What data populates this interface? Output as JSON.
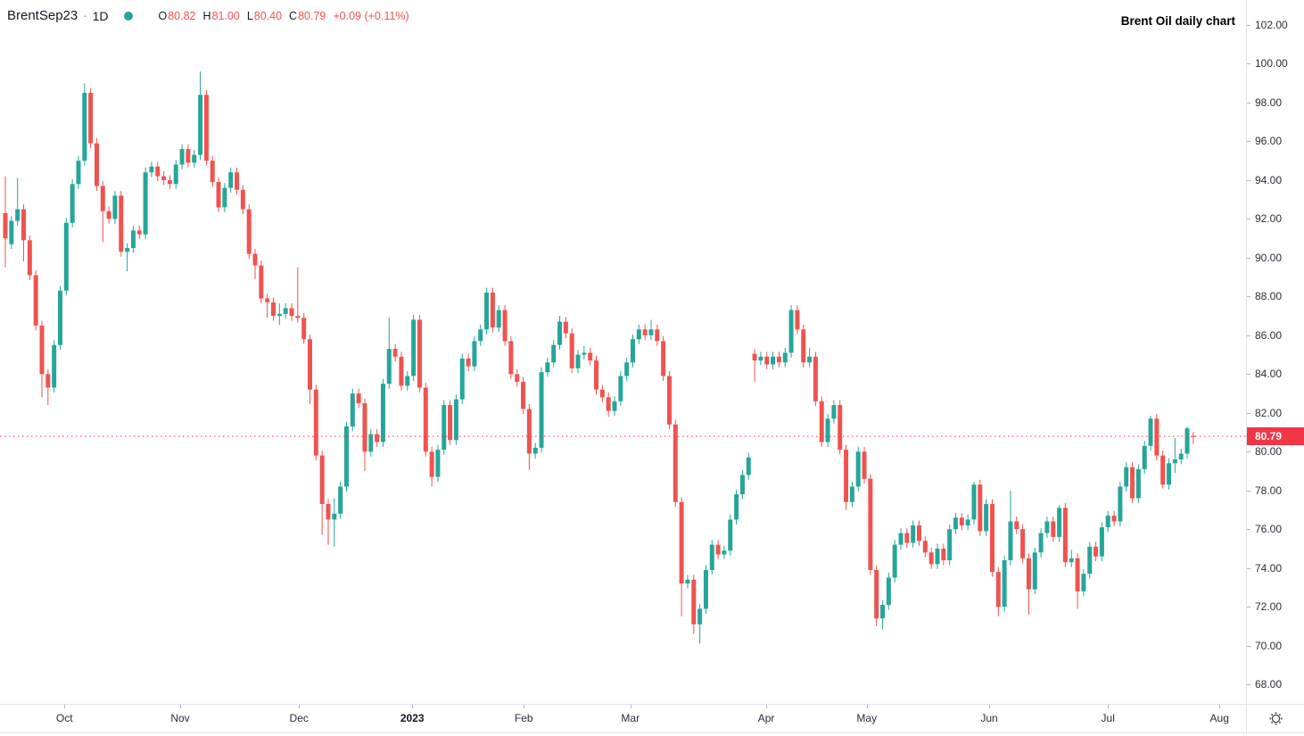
{
  "header": {
    "symbol": "BrentSep23",
    "separator": "·",
    "interval": "1D",
    "ohlc": [
      {
        "label": "O",
        "value": "80.82"
      },
      {
        "label": "H",
        "value": "81.00"
      },
      {
        "label": "L",
        "value": "80.40"
      },
      {
        "label": "C",
        "value": "80.79"
      }
    ],
    "change": "+0.09 (+0.11%)"
  },
  "annotation": {
    "title": "Brent Oil daily chart"
  },
  "price_axis": {
    "last_price_label": "80.79"
  },
  "toolbar": {
    "settings_icon": "gear-icon"
  },
  "colors": {
    "up": "#26a69a",
    "down": "#ef5350",
    "ohlc_values": "#ef5350",
    "last_price_badge": "#f23645",
    "dotted_line": "#f23645",
    "axis_text": "#2a2e39",
    "border": "#e0e3eb"
  },
  "chart_data": {
    "type": "candlestick",
    "title": "Brent Oil daily chart",
    "symbol": "BrentSep23",
    "interval": "1D",
    "legend": "O H L C of last bar: 80.82 / 81.00 / 80.40 / 80.79",
    "grid": false,
    "y_range_visible": [
      67.0,
      103.3
    ],
    "price_ticks": [
      102,
      100,
      98,
      96,
      94,
      92,
      90,
      88,
      86,
      84,
      82,
      80,
      78,
      76,
      74,
      72,
      70,
      68
    ],
    "last_price": 80.79,
    "x_ticks": [
      {
        "label": "Oct",
        "index": 9.7
      },
      {
        "label": "Nov",
        "index": 28.7
      },
      {
        "label": "Dec",
        "index": 48.2
      },
      {
        "label": "2023",
        "index": 66.8,
        "bold": true
      },
      {
        "label": "Feb",
        "index": 85.1
      },
      {
        "label": "Mar",
        "index": 102.6
      },
      {
        "label": "Apr",
        "index": 124.9
      },
      {
        "label": "May",
        "index": 141.4
      },
      {
        "label": "Jun",
        "index": 161.5
      },
      {
        "label": "Jul",
        "index": 181.0
      },
      {
        "label": "Aug",
        "index": 199.3
      }
    ],
    "candles": [
      [
        92.3,
        94.2,
        89.5,
        91.0
      ],
      [
        90.7,
        92.15,
        90.45,
        91.9
      ],
      [
        91.9,
        94.1,
        91.65,
        92.5
      ],
      [
        92.5,
        92.75,
        89.8,
        90.9
      ],
      [
        90.9,
        91.15,
        88.85,
        89.1
      ],
      [
        89.1,
        89.35,
        86.25,
        86.5
      ],
      [
        86.5,
        86.75,
        82.8,
        84.0
      ],
      [
        84.0,
        84.25,
        82.4,
        83.3
      ],
      [
        83.3,
        85.75,
        83.05,
        85.5
      ],
      [
        85.5,
        88.55,
        85.25,
        88.3
      ],
      [
        88.3,
        92.05,
        88.05,
        91.8
      ],
      [
        91.8,
        94.05,
        91.55,
        93.8
      ],
      [
        93.8,
        95.25,
        93.55,
        95.0
      ],
      [
        95.0,
        99.0,
        94.75,
        98.5
      ],
      [
        98.5,
        98.75,
        95.65,
        95.9
      ],
      [
        95.9,
        96.15,
        93.45,
        93.7
      ],
      [
        93.7,
        93.95,
        90.8,
        92.4
      ],
      [
        92.4,
        92.65,
        91.75,
        92.0
      ],
      [
        92.0,
        93.45,
        91.75,
        93.2
      ],
      [
        93.2,
        93.45,
        90.05,
        90.3
      ],
      [
        90.3,
        90.75,
        89.3,
        90.5
      ],
      [
        90.5,
        91.65,
        90.25,
        91.4
      ],
      [
        91.4,
        91.65,
        90.95,
        91.2
      ],
      [
        91.2,
        94.65,
        90.95,
        94.4
      ],
      [
        94.4,
        94.95,
        94.15,
        94.7
      ],
      [
        94.7,
        94.95,
        93.95,
        94.2
      ],
      [
        94.2,
        94.45,
        93.75,
        94.0
      ],
      [
        94.0,
        94.25,
        93.55,
        93.8
      ],
      [
        93.8,
        95.05,
        93.55,
        94.8
      ],
      [
        94.8,
        95.85,
        94.55,
        95.6
      ],
      [
        95.6,
        95.85,
        94.65,
        94.9
      ],
      [
        94.9,
        95.55,
        94.65,
        95.3
      ],
      [
        95.3,
        99.6,
        95.05,
        98.4
      ],
      [
        98.4,
        98.65,
        94.75,
        95.0
      ],
      [
        95.0,
        95.25,
        93.65,
        93.9
      ],
      [
        93.9,
        94.15,
        92.35,
        92.6
      ],
      [
        92.6,
        93.85,
        92.35,
        93.6
      ],
      [
        93.6,
        94.65,
        93.35,
        94.4
      ],
      [
        94.4,
        94.65,
        93.25,
        93.5
      ],
      [
        93.5,
        93.75,
        92.25,
        92.5
      ],
      [
        92.5,
        92.75,
        89.95,
        90.2
      ],
      [
        90.2,
        90.45,
        88.9,
        89.6
      ],
      [
        89.6,
        89.85,
        87.65,
        87.9
      ],
      [
        87.9,
        88.15,
        86.9,
        87.7
      ],
      [
        87.7,
        87.95,
        86.75,
        87.0
      ],
      [
        87.0,
        87.65,
        86.55,
        87.1
      ],
      [
        87.1,
        87.65,
        86.85,
        87.4
      ],
      [
        87.4,
        87.65,
        86.75,
        87.0
      ],
      [
        87.0,
        89.5,
        86.65,
        86.9
      ],
      [
        86.9,
        87.15,
        85.55,
        85.8
      ],
      [
        85.8,
        86.05,
        82.45,
        83.2
      ],
      [
        83.2,
        83.45,
        79.55,
        79.8
      ],
      [
        79.8,
        80.05,
        75.7,
        77.3
      ],
      [
        77.3,
        77.55,
        75.2,
        76.5
      ],
      [
        76.5,
        77.6,
        75.1,
        76.8
      ],
      [
        76.8,
        78.45,
        76.55,
        78.2
      ],
      [
        78.2,
        81.55,
        77.95,
        81.3
      ],
      [
        81.3,
        83.25,
        81.05,
        83.0
      ],
      [
        83.0,
        83.25,
        82.25,
        82.5
      ],
      [
        82.5,
        82.75,
        79.0,
        80.0
      ],
      [
        80.0,
        81.15,
        79.75,
        80.9
      ],
      [
        80.9,
        81.15,
        80.25,
        80.5
      ],
      [
        80.5,
        83.75,
        80.25,
        83.5
      ],
      [
        83.5,
        86.9,
        83.25,
        85.3
      ],
      [
        85.3,
        85.55,
        84.65,
        84.9
      ],
      [
        84.9,
        85.15,
        83.15,
        83.4
      ],
      [
        83.4,
        84.15,
        83.15,
        83.9
      ],
      [
        83.9,
        87.05,
        83.65,
        86.8
      ],
      [
        86.8,
        87.05,
        83.05,
        83.3
      ],
      [
        83.3,
        83.55,
        79.75,
        80.0
      ],
      [
        80.0,
        80.25,
        78.2,
        78.7
      ],
      [
        78.7,
        80.35,
        78.45,
        80.1
      ],
      [
        80.1,
        82.65,
        79.85,
        82.4
      ],
      [
        82.4,
        82.65,
        80.35,
        80.6
      ],
      [
        80.6,
        82.95,
        80.35,
        82.7
      ],
      [
        82.7,
        85.05,
        82.45,
        84.8
      ],
      [
        84.8,
        85.05,
        84.15,
        84.4
      ],
      [
        84.4,
        85.95,
        84.15,
        85.7
      ],
      [
        85.7,
        86.55,
        85.45,
        86.3
      ],
      [
        86.3,
        88.45,
        86.05,
        88.2
      ],
      [
        88.2,
        88.45,
        86.15,
        86.4
      ],
      [
        86.4,
        87.55,
        86.15,
        87.3
      ],
      [
        87.3,
        87.55,
        85.45,
        85.7
      ],
      [
        85.7,
        85.95,
        83.75,
        84.0
      ],
      [
        84.0,
        84.25,
        83.35,
        83.6
      ],
      [
        83.6,
        83.85,
        81.95,
        82.2
      ],
      [
        82.2,
        82.45,
        79.05,
        79.9
      ],
      [
        79.9,
        80.45,
        79.65,
        80.2
      ],
      [
        80.2,
        84.35,
        79.95,
        84.1
      ],
      [
        84.1,
        84.85,
        83.85,
        84.6
      ],
      [
        84.6,
        85.75,
        84.35,
        85.5
      ],
      [
        85.5,
        87.0,
        85.25,
        86.7
      ],
      [
        86.7,
        86.95,
        85.85,
        86.1
      ],
      [
        86.1,
        86.35,
        84.05,
        84.3
      ],
      [
        84.3,
        85.25,
        84.05,
        85.0
      ],
      [
        85.0,
        85.45,
        84.75,
        85.1
      ],
      [
        85.1,
        85.35,
        84.45,
        84.7
      ],
      [
        84.7,
        84.95,
        82.95,
        83.2
      ],
      [
        83.2,
        83.45,
        82.55,
        82.8
      ],
      [
        82.8,
        83.05,
        81.8,
        82.1
      ],
      [
        82.1,
        82.85,
        81.85,
        82.6
      ],
      [
        82.6,
        84.15,
        82.35,
        83.9
      ],
      [
        83.9,
        84.85,
        83.65,
        84.6
      ],
      [
        84.6,
        86.05,
        84.35,
        85.8
      ],
      [
        85.8,
        86.55,
        85.55,
        86.3
      ],
      [
        86.3,
        86.55,
        85.75,
        86.0
      ],
      [
        86.0,
        86.8,
        85.75,
        86.3
      ],
      [
        86.3,
        86.55,
        85.45,
        85.7
      ],
      [
        85.7,
        85.95,
        83.65,
        83.9
      ],
      [
        83.9,
        84.15,
        81.15,
        81.4
      ],
      [
        81.4,
        81.65,
        77.15,
        77.4
      ],
      [
        77.4,
        77.65,
        71.5,
        73.2
      ],
      [
        73.2,
        73.65,
        72.95,
        73.4
      ],
      [
        73.4,
        73.65,
        70.6,
        71.1
      ],
      [
        71.1,
        72.15,
        70.1,
        71.9
      ],
      [
        71.9,
        74.15,
        71.65,
        73.9
      ],
      [
        73.9,
        75.45,
        73.65,
        75.2
      ],
      [
        75.2,
        75.45,
        74.45,
        74.7
      ],
      [
        74.7,
        75.15,
        74.45,
        74.9
      ],
      [
        74.9,
        76.75,
        74.65,
        76.5
      ],
      [
        76.5,
        78.05,
        76.25,
        77.8
      ],
      [
        77.8,
        79.05,
        77.55,
        78.8
      ],
      [
        78.8,
        79.95,
        78.55,
        79.7
      ],
      [
        85.05,
        85.3,
        83.6,
        84.7
      ],
      [
        84.7,
        85.15,
        84.45,
        84.9
      ],
      [
        84.9,
        85.15,
        84.25,
        84.5
      ],
      [
        84.5,
        85.15,
        84.25,
        84.9
      ],
      [
        84.9,
        85.15,
        84.35,
        84.6
      ],
      [
        84.6,
        85.35,
        84.35,
        85.1
      ],
      [
        85.1,
        87.55,
        84.85,
        87.3
      ],
      [
        87.3,
        87.55,
        86.05,
        86.3
      ],
      [
        86.3,
        86.55,
        84.35,
        84.6
      ],
      [
        84.6,
        85.35,
        84.35,
        84.9
      ],
      [
        84.9,
        85.15,
        82.35,
        82.6
      ],
      [
        82.6,
        82.85,
        80.25,
        80.5
      ],
      [
        80.5,
        81.95,
        80.25,
        81.7
      ],
      [
        81.7,
        82.65,
        81.45,
        82.4
      ],
      [
        82.4,
        82.65,
        79.85,
        80.1
      ],
      [
        80.1,
        80.35,
        77.0,
        77.4
      ],
      [
        77.4,
        78.45,
        77.15,
        78.2
      ],
      [
        78.2,
        80.25,
        77.95,
        80.0
      ],
      [
        80.0,
        80.25,
        78.35,
        78.6
      ],
      [
        78.6,
        78.85,
        73.65,
        73.9
      ],
      [
        73.9,
        74.15,
        71.0,
        71.4
      ],
      [
        71.4,
        72.35,
        70.85,
        72.1
      ],
      [
        72.1,
        73.75,
        71.85,
        73.5
      ],
      [
        73.5,
        75.45,
        73.25,
        75.2
      ],
      [
        75.2,
        76.05,
        74.95,
        75.8
      ],
      [
        75.8,
        76.05,
        75.05,
        75.3
      ],
      [
        75.3,
        76.45,
        75.05,
        76.2
      ],
      [
        76.2,
        76.45,
        75.15,
        75.4
      ],
      [
        75.4,
        75.65,
        74.55,
        74.8
      ],
      [
        74.8,
        75.05,
        73.95,
        74.2
      ],
      [
        74.2,
        75.25,
        73.95,
        75.0
      ],
      [
        75.0,
        75.25,
        74.15,
        74.4
      ],
      [
        74.4,
        76.25,
        74.15,
        76.0
      ],
      [
        76.0,
        76.85,
        75.75,
        76.6
      ],
      [
        76.6,
        76.85,
        75.95,
        76.2
      ],
      [
        76.2,
        76.75,
        75.95,
        76.5
      ],
      [
        76.5,
        78.45,
        76.25,
        78.3
      ],
      [
        78.3,
        78.55,
        75.65,
        75.9
      ],
      [
        75.9,
        77.55,
        75.65,
        77.3
      ],
      [
        77.3,
        77.55,
        73.55,
        73.8
      ],
      [
        73.8,
        74.05,
        71.5,
        72.0
      ],
      [
        72.0,
        74.65,
        71.75,
        74.4
      ],
      [
        74.4,
        78.0,
        74.15,
        76.4
      ],
      [
        76.4,
        76.65,
        75.75,
        76.0
      ],
      [
        76.0,
        76.25,
        74.25,
        74.5
      ],
      [
        74.5,
        74.75,
        71.6,
        72.9
      ],
      [
        72.9,
        75.05,
        72.65,
        74.8
      ],
      [
        74.8,
        76.05,
        74.55,
        75.8
      ],
      [
        75.8,
        76.65,
        75.55,
        76.4
      ],
      [
        76.4,
        76.65,
        75.35,
        75.6
      ],
      [
        75.6,
        77.25,
        75.35,
        77.1
      ],
      [
        77.1,
        77.35,
        74.05,
        74.3
      ],
      [
        74.3,
        74.95,
        74.05,
        74.5
      ],
      [
        74.5,
        74.75,
        71.9,
        72.8
      ],
      [
        72.8,
        73.95,
        72.55,
        73.7
      ],
      [
        73.7,
        75.35,
        73.45,
        75.1
      ],
      [
        75.1,
        75.35,
        74.35,
        74.6
      ],
      [
        74.6,
        76.35,
        74.35,
        76.1
      ],
      [
        76.1,
        76.95,
        75.85,
        76.7
      ],
      [
        76.7,
        76.95,
        76.15,
        76.4
      ],
      [
        76.4,
        78.45,
        76.15,
        78.2
      ],
      [
        78.2,
        79.45,
        77.95,
        79.2
      ],
      [
        79.2,
        79.45,
        77.35,
        77.6
      ],
      [
        77.6,
        79.35,
        77.35,
        79.1
      ],
      [
        79.1,
        80.55,
        78.85,
        80.3
      ],
      [
        80.3,
        81.85,
        80.05,
        81.7
      ],
      [
        81.7,
        81.95,
        79.55,
        79.8
      ],
      [
        79.8,
        80.05,
        78.1,
        78.3
      ],
      [
        78.3,
        79.65,
        78.05,
        79.4
      ],
      [
        79.4,
        80.7,
        78.9,
        79.6
      ],
      [
        79.6,
        80.15,
        79.35,
        79.9
      ],
      [
        79.9,
        81.3,
        79.65,
        81.2
      ],
      [
        80.82,
        81.0,
        80.4,
        80.79
      ]
    ]
  }
}
